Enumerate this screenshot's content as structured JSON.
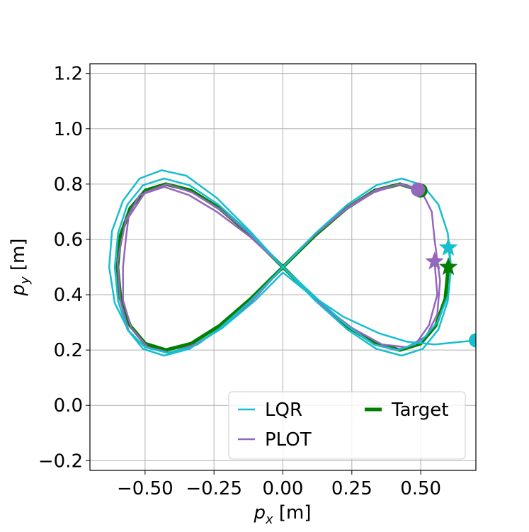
{
  "chart_data": {
    "type": "line",
    "xlabel": {
      "base": "p",
      "sub": "x",
      "unit": "[m]"
    },
    "ylabel": {
      "base": "p",
      "sub": "y",
      "unit": "[m]"
    },
    "xlim": [
      -0.7,
      0.7
    ],
    "ylim": [
      -0.235,
      1.235
    ],
    "xticks": [
      {
        "value": -0.5,
        "label": "−0.50"
      },
      {
        "value": -0.25,
        "label": "−0.25"
      },
      {
        "value": 0,
        "label": "0.00"
      },
      {
        "value": 0.25,
        "label": "0.25"
      },
      {
        "value": 0.5,
        "label": "0.50"
      }
    ],
    "yticks": [
      {
        "value": -0.2,
        "label": "−0.2"
      },
      {
        "value": 0,
        "label": "0.0"
      },
      {
        "value": 0.2,
        "label": "0.2"
      },
      {
        "value": 0.4,
        "label": "0.4"
      },
      {
        "value": 0.6,
        "label": "0.6"
      },
      {
        "value": 0.8,
        "label": "0.8"
      },
      {
        "value": 1.0,
        "label": "1.0"
      },
      {
        "value": 1.2,
        "label": "1.2"
      }
    ],
    "grid": true,
    "series": [
      {
        "name": "LQR",
        "color": "#17becf",
        "width": 2.5,
        "x": [
          0.6,
          0.61,
          0.598,
          0.564,
          0.507,
          0.431,
          0.339,
          0.234,
          0.119,
          0,
          -0.119,
          -0.234,
          -0.339,
          -0.431,
          -0.507,
          -0.564,
          -0.598,
          -0.61,
          -0.598,
          -0.564,
          -0.507,
          -0.431,
          -0.339,
          -0.234,
          -0.119,
          0,
          0.119,
          0.234,
          0.339,
          0.431,
          0.507,
          0.564,
          0.598,
          0.61,
          0.6,
          0.56,
          0.5,
          0.42,
          0.33,
          0.23,
          0.12,
          0,
          -0.12,
          -0.24,
          -0.35,
          -0.44,
          -0.52,
          -0.58,
          -0.62,
          -0.63,
          -0.61,
          -0.56,
          -0.5,
          -0.42,
          -0.33,
          -0.22,
          -0.1,
          0,
          0.1,
          0.22,
          0.35,
          0.45,
          0.55,
          0.7
        ],
        "y": [
          0.57,
          0.5,
          0.377,
          0.274,
          0.204,
          0.18,
          0.204,
          0.274,
          0.377,
          0.5,
          0.623,
          0.726,
          0.796,
          0.82,
          0.796,
          0.726,
          0.623,
          0.5,
          0.377,
          0.274,
          0.204,
          0.18,
          0.204,
          0.274,
          0.377,
          0.5,
          0.623,
          0.726,
          0.796,
          0.82,
          0.796,
          0.726,
          0.623,
          0.5,
          0.4,
          0.3,
          0.23,
          0.2,
          0.22,
          0.29,
          0.39,
          0.5,
          0.63,
          0.75,
          0.83,
          0.85,
          0.82,
          0.74,
          0.63,
          0.5,
          0.37,
          0.27,
          0.21,
          0.19,
          0.21,
          0.28,
          0.38,
          0.48,
          0.4,
          0.32,
          0.26,
          0.23,
          0.22,
          0.235
        ]
      },
      {
        "name": "PLOT",
        "color": "#9467bd",
        "width": 2.5,
        "x": [
          0.55,
          0.56,
          0.53,
          0.48,
          0.41,
          0.33,
          0.23,
          0.12,
          0,
          -0.12,
          -0.23,
          -0.33,
          -0.42,
          -0.5,
          -0.56,
          -0.57,
          -0.58,
          -0.58,
          -0.55,
          -0.49,
          -0.41,
          -0.32,
          -0.22,
          -0.11,
          0,
          0.12,
          0.24,
          0.34,
          0.43,
          0.5,
          0.54,
          0.55,
          0.57,
          0.56,
          0.52,
          0.45,
          0.36,
          0.25,
          0.12,
          0,
          -0.12,
          -0.24,
          -0.34,
          -0.43,
          -0.52,
          -0.57,
          -0.6,
          -0.59,
          -0.56,
          -0.5,
          -0.41,
          -0.31,
          -0.2,
          -0.1,
          0,
          0.12,
          0.23,
          0.33,
          0.42,
          0.49
        ],
        "y": [
          0.52,
          0.4,
          0.29,
          0.22,
          0.2,
          0.22,
          0.29,
          0.38,
          0.5,
          0.62,
          0.71,
          0.77,
          0.8,
          0.77,
          0.68,
          0.6,
          0.5,
          0.38,
          0.28,
          0.21,
          0.19,
          0.22,
          0.28,
          0.38,
          0.5,
          0.62,
          0.72,
          0.78,
          0.8,
          0.78,
          0.7,
          0.6,
          0.45,
          0.33,
          0.25,
          0.21,
          0.22,
          0.28,
          0.38,
          0.5,
          0.61,
          0.7,
          0.76,
          0.79,
          0.76,
          0.67,
          0.52,
          0.38,
          0.27,
          0.21,
          0.19,
          0.22,
          0.3,
          0.39,
          0.5,
          0.62,
          0.71,
          0.77,
          0.8,
          0.78
        ]
      },
      {
        "name": "Target",
        "color": "#008000",
        "width": 5,
        "x": [
          0.6,
          0.589,
          0.554,
          0.499,
          0.424,
          0.334,
          0.23,
          0.117,
          0,
          -0.117,
          -0.23,
          -0.334,
          -0.424,
          -0.499,
          -0.554,
          -0.589,
          -0.6,
          -0.589,
          -0.554,
          -0.499,
          -0.424,
          -0.334,
          -0.23,
          -0.117,
          0,
          0.117,
          0.23,
          0.334,
          0.424,
          0.499
        ],
        "y": [
          0.5,
          0.385,
          0.288,
          0.223,
          0.2,
          0.223,
          0.288,
          0.385,
          0.5,
          0.615,
          0.712,
          0.777,
          0.8,
          0.777,
          0.712,
          0.615,
          0.5,
          0.385,
          0.288,
          0.223,
          0.2,
          0.223,
          0.288,
          0.385,
          0.5,
          0.615,
          0.712,
          0.777,
          0.8,
          0.777
        ]
      }
    ]
  }
}
